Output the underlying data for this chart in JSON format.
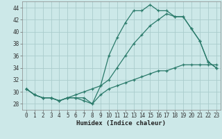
{
  "xlabel": "Humidex (Indice chaleur)",
  "bg_color": "#cce8e8",
  "grid_color": "#aacccc",
  "line_color": "#2a7a6a",
  "xlim": [
    -0.5,
    23.5
  ],
  "ylim": [
    27,
    45
  ],
  "xticks": [
    0,
    1,
    2,
    3,
    4,
    5,
    6,
    7,
    8,
    9,
    10,
    11,
    12,
    13,
    14,
    15,
    16,
    17,
    18,
    19,
    20,
    21,
    22,
    23
  ],
  "yticks": [
    28,
    30,
    32,
    34,
    36,
    38,
    40,
    42,
    44
  ],
  "line1_x": [
    0,
    1,
    2,
    3,
    4,
    5,
    6,
    7,
    8,
    9,
    10,
    11,
    12,
    13,
    14,
    15,
    16,
    17,
    18,
    19,
    20,
    21,
    22,
    23
  ],
  "line1_y": [
    30.5,
    29.5,
    29.0,
    29.0,
    28.5,
    29.0,
    29.0,
    29.0,
    28.0,
    31.0,
    36.0,
    39.0,
    41.5,
    43.5,
    43.5,
    44.5,
    43.5,
    43.5,
    42.5,
    42.5,
    40.5,
    38.5,
    35.0,
    34.0
  ],
  "line2_x": [
    0,
    1,
    2,
    3,
    4,
    5,
    6,
    7,
    8,
    9,
    10,
    11,
    12,
    13,
    14,
    15,
    16,
    17,
    18,
    19,
    20,
    21,
    22,
    23
  ],
  "line2_y": [
    30.5,
    29.5,
    29.0,
    29.0,
    28.5,
    29.0,
    29.5,
    30.0,
    30.5,
    31.0,
    32.0,
    34.0,
    36.0,
    38.0,
    39.5,
    41.0,
    42.0,
    43.0,
    42.5,
    42.5,
    40.5,
    38.5,
    35.0,
    34.0
  ],
  "line3_x": [
    0,
    1,
    2,
    3,
    4,
    5,
    6,
    7,
    8,
    9,
    10,
    11,
    12,
    13,
    14,
    15,
    16,
    17,
    18,
    19,
    20,
    21,
    22,
    23
  ],
  "line3_y": [
    30.5,
    29.5,
    29.0,
    29.0,
    28.5,
    29.0,
    29.0,
    28.5,
    28.0,
    29.5,
    30.5,
    31.0,
    31.5,
    32.0,
    32.5,
    33.0,
    33.5,
    33.5,
    34.0,
    34.5,
    34.5,
    34.5,
    34.5,
    34.5
  ]
}
